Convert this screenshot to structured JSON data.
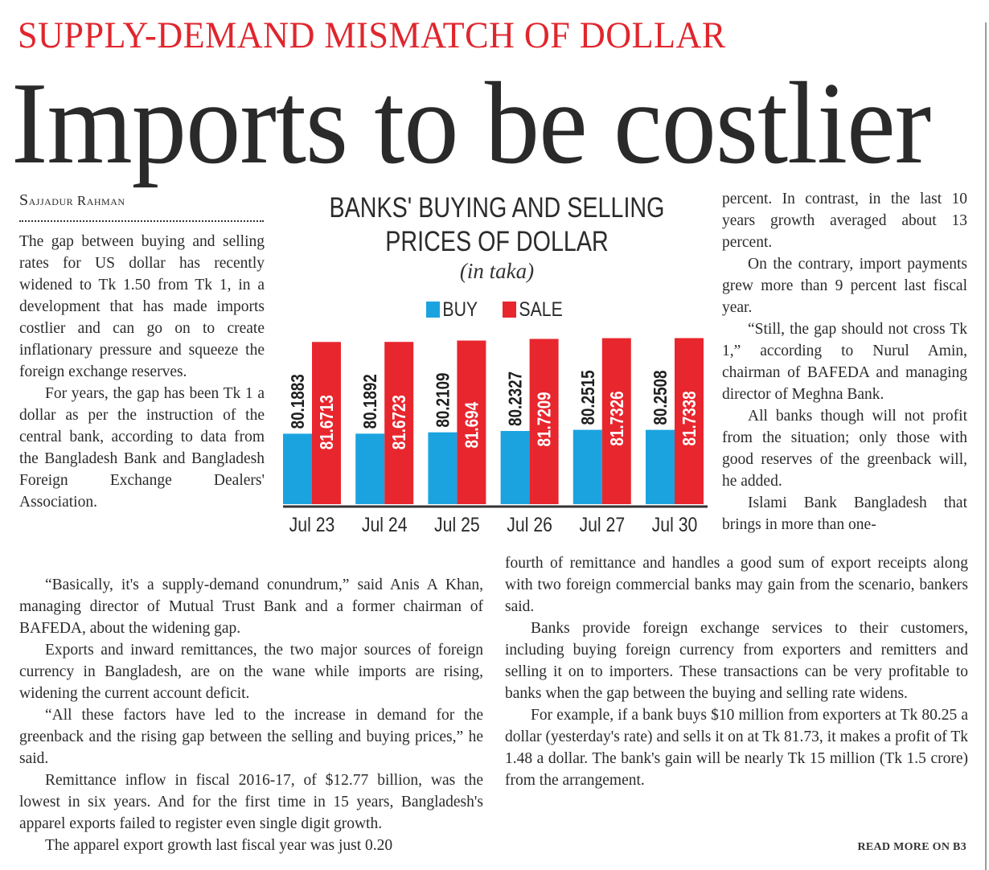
{
  "kicker": "SUPPLY-DEMAND MISMATCH OF DOLLAR",
  "headline": "Imports to be costlier",
  "byline": "Sajjadur Rahman",
  "columns": {
    "left_top": [
      "The gap between buying and selling rates for US dollar has recently widened to Tk 1.50 from Tk 1, in a development that has made imports costlier and can go on to create inflationary pressure and squeeze the foreign exchange reserves.",
      "For years, the gap has been Tk 1 a dollar as per the instruction of the central bank, according to data from the Bangladesh Bank and Bangladesh Foreign Exchange Dealers' Association."
    ],
    "left_bottom": [
      "“Basically, it's a supply-demand conundrum,” said Anis A Khan, managing director of Mutual Trust Bank and a former chairman of BAFEDA, about the widening gap.",
      "Exports and inward remittances, the two major sources of foreign currency in Bangladesh, are on the wane while imports are rising, widening the current account deficit.",
      "“All these factors have led to the increase in demand for the greenback and the rising gap between the selling and buying prices,” he said.",
      "Remittance inflow in fiscal 2016-17, of $12.77 billion, was the lowest in six years. And for the first time in 15 years, Bangladesh's apparel exports failed to register even single digit growth.",
      "The apparel export growth last fiscal year was just 0.20"
    ],
    "right_top": [
      "percent. In contrast, in the last 10 years growth averaged about 13 percent.",
      "On the contrary, import payments grew more than 9 percent last fiscal year.",
      "“Still, the gap should not cross Tk 1,” according to Nurul Amin, chairman of BAFEDA and managing director of Meghna Bank.",
      "All banks though will not profit from the situation; only those with good reserves of the greenback will, he added.",
      "Islami Bank Bangladesh that brings in more than one-"
    ],
    "right_bottom": [
      "fourth of remittance and handles a good sum of export receipts along with two foreign commercial banks may gain from the scenario, bankers said.",
      "Banks provide foreign exchange services to their customers, including buying foreign currency from exporters and remitters and selling it on to importers. These transactions can be very profitable to banks when the gap between the buying and selling rate widens.",
      "For example, if a bank buys $10 million from exporters at Tk 80.25 a dollar (yesterday's rate) and sells it on at Tk 81.73, it makes a profit of Tk 1.48 a dollar. The bank's gain will be nearly Tk 15 million (Tk 1.5 crore) from the arrangement."
    ]
  },
  "read_more": "READ MORE ON B3",
  "colors": {
    "kicker": "#e0262d",
    "buy": "#1ba3e0",
    "sale": "#e8262e",
    "text": "#2b2b2b"
  },
  "chart_data": {
    "type": "bar",
    "title": "BANKS' BUYING AND SELLING PRICES OF DOLLAR",
    "subtitle": "(in taka)",
    "xlabel": "",
    "ylabel": "",
    "ylim": [
      79.05,
      82.0
    ],
    "grid": false,
    "legend_position": "top-center",
    "categories": [
      "Jul 23",
      "Jul 24",
      "Jul 25",
      "Jul 26",
      "Jul 27",
      "Jul 30"
    ],
    "series": [
      {
        "name": "BUY",
        "color": "#1ba3e0",
        "values": [
          80.1883,
          80.1892,
          80.2109,
          80.2327,
          80.2515,
          80.2508
        ],
        "labels": [
          "80.1883",
          "80.1892",
          "80.2109",
          "80.2327",
          "80.2515",
          "80.2508"
        ]
      },
      {
        "name": "SALE",
        "color": "#e8262e",
        "values": [
          81.6713,
          81.6723,
          81.694,
          81.7209,
          81.7326,
          81.7338
        ],
        "labels": [
          "81.6713",
          "81.6723",
          "81.694",
          "81.7209",
          "81.7326",
          "81.7338"
        ]
      }
    ]
  }
}
